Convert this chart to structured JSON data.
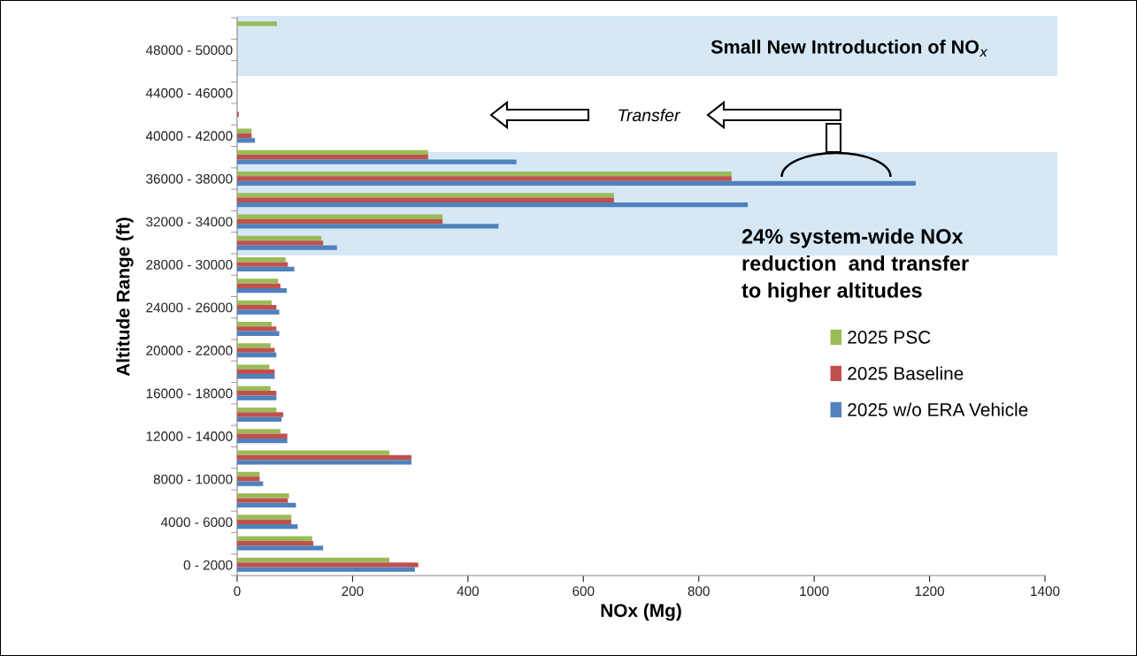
{
  "chart_data": {
    "type": "bar",
    "orientation": "horizontal",
    "xlabel": "NOx (Mg)",
    "ylabel": "Altitude Range (ft)",
    "categories": [
      null,
      "48000 - 50000",
      null,
      "44000 - 46000",
      null,
      "40000 - 42000",
      null,
      "36000 - 38000",
      null,
      "32000 - 34000",
      null,
      "28000 - 30000",
      null,
      "24000 - 26000",
      null,
      "20000 - 22000",
      null,
      "16000 - 18000",
      null,
      "12000 - 14000",
      null,
      "8000 - 10000",
      null,
      "4000 - 6000",
      null,
      "0 - 2000"
    ],
    "series": [
      {
        "name": "2025 PSC",
        "color": "#9bbb59",
        "values": [
          69,
          0,
          0,
          0,
          0,
          25,
          331,
          857,
          653,
          356,
          146,
          84,
          71,
          60,
          60,
          58,
          56,
          58,
          68,
          75,
          264,
          39,
          90,
          94,
          130,
          264
        ]
      },
      {
        "name": "2025 Baseline",
        "color": "#c0504d",
        "values": [
          0,
          0,
          0,
          0,
          3,
          25,
          331,
          857,
          653,
          356,
          149,
          88,
          75,
          68,
          68,
          65,
          65,
          68,
          80,
          87,
          302,
          39,
          88,
          94,
          132,
          314
        ]
      },
      {
        "name": "2025 w/o ERA Vehicle",
        "color": "#4f81bd",
        "values": [
          0,
          0,
          0,
          0,
          0,
          31,
          484,
          1176,
          885,
          453,
          173,
          99,
          86,
          73,
          73,
          68,
          65,
          68,
          77,
          87,
          302,
          45,
          102,
          105,
          149,
          308
        ]
      }
    ],
    "xlim": [
      0,
      1400
    ],
    "xticks": [
      0,
      200,
      400,
      600,
      800,
      1000,
      1200,
      1400
    ],
    "annotations": [
      "Small New Introduction of NO$_{x}$",
      "Transfer",
      "24% system-wide NOx\nreduction  and transfer\nto higher altitudes"
    ],
    "legend": "right",
    "grid": false
  }
}
